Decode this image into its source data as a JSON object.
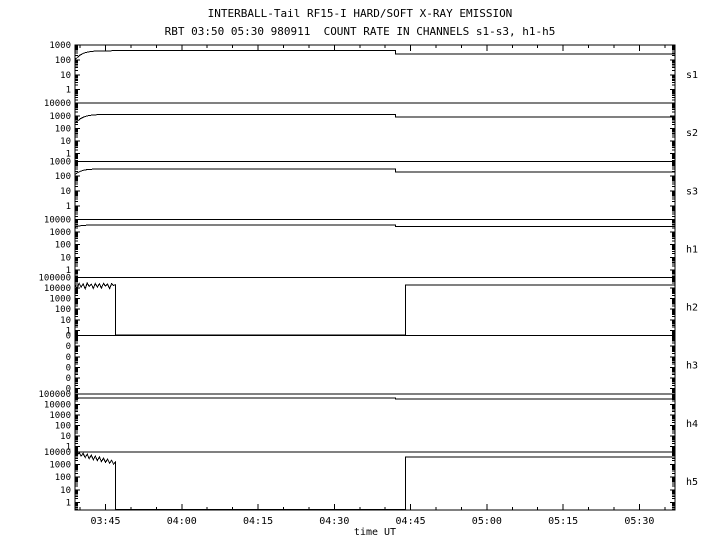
{
  "title": "INTERBALL-Tail RF15-I HARD/SOFT X-RAY EMISSION",
  "subtitle": "RBT 03:50 05:30 980911  COUNT RATE IN CHANNELS s1-s3, h1-h5",
  "xlabel": "time UT",
  "colors": {
    "foreground": "#000000",
    "background": "#ffffff"
  },
  "chart_data": {
    "type": "line",
    "title": "INTERBALL-Tail RF15-I HARD/SOFT X-RAY EMISSION",
    "subtitle": "RBT 03:50 05:30 980911  COUNT RATE IN CHANNELS s1-s3, h1-h5",
    "xlabel": "time UT",
    "x_unit": "minutes after 00:00 UT",
    "xlim": [
      219,
      337
    ],
    "x_minor_step": 5,
    "grid": false,
    "legend": "right-edge panel labels",
    "x_ticks": [
      {
        "t": 225,
        "label": "03:45"
      },
      {
        "t": 240,
        "label": "04:00"
      },
      {
        "t": 255,
        "label": "04:15"
      },
      {
        "t": 270,
        "label": "04:30"
      },
      {
        "t": 285,
        "label": "04:45"
      },
      {
        "t": 300,
        "label": "05:00"
      },
      {
        "t": 315,
        "label": "05:15"
      },
      {
        "t": 330,
        "label": "05:30"
      }
    ],
    "y_scale": "log",
    "panels": [
      {
        "id": "s1",
        "label": "s1",
        "top_exp": 3,
        "bottom_exp": -0.9,
        "y_ticks": [
          {
            "exp": 3,
            "label": "1000"
          },
          {
            "exp": 2,
            "label": "100"
          },
          {
            "exp": 1,
            "label": "10"
          },
          {
            "exp": 0,
            "label": "1"
          }
        ],
        "series": [
          [
            219,
            105
          ],
          [
            219.5,
            150
          ],
          [
            220,
            210
          ],
          [
            220.7,
            280
          ],
          [
            221.5,
            340
          ],
          [
            222.5,
            380
          ],
          [
            224,
            400
          ],
          [
            227,
            412
          ],
          [
            282,
            412
          ],
          [
            282,
            255
          ],
          [
            337,
            255
          ]
        ]
      },
      {
        "id": "s2",
        "label": "s2",
        "top_exp": 4,
        "bottom_exp": -0.6,
        "y_ticks": [
          {
            "exp": 4,
            "label": "10000"
          },
          {
            "exp": 3,
            "label": "1000"
          },
          {
            "exp": 2,
            "label": "100"
          },
          {
            "exp": 1,
            "label": "10"
          },
          {
            "exp": 0,
            "label": "1"
          }
        ],
        "series": [
          [
            219,
            260
          ],
          [
            219.5,
            380
          ],
          [
            220,
            560
          ],
          [
            220.7,
            800
          ],
          [
            221.5,
            1000
          ],
          [
            222.5,
            1150
          ],
          [
            224,
            1250
          ],
          [
            227,
            1300
          ],
          [
            282,
            1300
          ],
          [
            282,
            780
          ],
          [
            337,
            780
          ]
        ]
      },
      {
        "id": "s3",
        "label": "s3",
        "top_exp": 3,
        "bottom_exp": -0.9,
        "y_ticks": [
          {
            "exp": 3,
            "label": "1000"
          },
          {
            "exp": 2,
            "label": "100"
          },
          {
            "exp": 1,
            "label": "10"
          },
          {
            "exp": 0,
            "label": "1"
          }
        ],
        "series": [
          [
            219,
            130
          ],
          [
            219.5,
            170
          ],
          [
            220,
            210
          ],
          [
            220.7,
            250
          ],
          [
            221.5,
            280
          ],
          [
            222.5,
            295
          ],
          [
            224,
            305
          ],
          [
            227,
            310
          ],
          [
            282,
            310
          ],
          [
            282,
            185
          ],
          [
            337,
            185
          ]
        ]
      },
      {
        "id": "h1",
        "label": "h1",
        "top_exp": 4,
        "bottom_exp": -0.6,
        "y_ticks": [
          {
            "exp": 4,
            "label": "10000"
          },
          {
            "exp": 3,
            "label": "1000"
          },
          {
            "exp": 2,
            "label": "100"
          },
          {
            "exp": 1,
            "label": "10"
          },
          {
            "exp": 0,
            "label": "1"
          }
        ],
        "series": [
          [
            219,
            2500
          ],
          [
            220,
            3100
          ],
          [
            221.5,
            3500
          ],
          [
            224,
            3700
          ],
          [
            282,
            3700
          ],
          [
            282,
            2700
          ],
          [
            337,
            2700
          ]
        ]
      },
      {
        "id": "h2",
        "label": "h2",
        "top_exp": 5,
        "bottom_exp": -0.5,
        "y_ticks": [
          {
            "exp": 5,
            "label": "100000"
          },
          {
            "exp": 4,
            "label": "10000"
          },
          {
            "exp": 3,
            "label": "1000"
          },
          {
            "exp": 2,
            "label": "100"
          },
          {
            "exp": 1,
            "label": "10"
          },
          {
            "exp": 0,
            "label": "1"
          }
        ],
        "series": [
          [
            219,
            22000
          ],
          [
            219.4,
            9000
          ],
          [
            219.8,
            28000
          ],
          [
            220.2,
            12000
          ],
          [
            220.6,
            25000
          ],
          [
            221,
            8500
          ],
          [
            221.4,
            30000
          ],
          [
            221.8,
            14000
          ],
          [
            222.2,
            24000
          ],
          [
            222.6,
            9500
          ],
          [
            223,
            27000
          ],
          [
            223.4,
            12000
          ],
          [
            223.8,
            26000
          ],
          [
            224.2,
            10000
          ],
          [
            224.6,
            28000
          ],
          [
            225,
            15000
          ],
          [
            225.4,
            23000
          ],
          [
            225.8,
            9000
          ],
          [
            226.2,
            26000
          ],
          [
            226.6,
            18000
          ],
          [
            227,
            21000
          ],
          [
            227,
            0.35
          ],
          [
            284,
            0.35
          ],
          [
            284,
            20000
          ],
          [
            337,
            20000
          ]
        ]
      },
      {
        "id": "h3",
        "label": "h3",
        "top_exp": 5,
        "bottom_exp": -0.5,
        "y_ticks": [
          {
            "exp": 5,
            "label": "0"
          },
          {
            "exp": 4,
            "label": "0"
          },
          {
            "exp": 3,
            "label": "0"
          },
          {
            "exp": 2,
            "label": "0"
          },
          {
            "exp": 1,
            "label": "0"
          },
          {
            "exp": 0,
            "label": "0"
          }
        ],
        "series": []
      },
      {
        "id": "h4",
        "label": "h4",
        "top_exp": 5,
        "bottom_exp": -0.5,
        "y_ticks": [
          {
            "exp": 5,
            "label": "100000"
          },
          {
            "exp": 4,
            "label": "10000"
          },
          {
            "exp": 3,
            "label": "1000"
          },
          {
            "exp": 2,
            "label": "100"
          },
          {
            "exp": 1,
            "label": "10"
          },
          {
            "exp": 0,
            "label": "1"
          }
        ],
        "series": [
          [
            219,
            34000
          ],
          [
            220,
            40000
          ],
          [
            282,
            40000
          ],
          [
            282,
            32000
          ],
          [
            337,
            32000
          ]
        ]
      },
      {
        "id": "h5",
        "label": "h5",
        "top_exp": 4,
        "bottom_exp": -0.6,
        "y_ticks": [
          {
            "exp": 4,
            "label": "10000"
          },
          {
            "exp": 3,
            "label": "1000"
          },
          {
            "exp": 2,
            "label": "100"
          },
          {
            "exp": 1,
            "label": "10"
          },
          {
            "exp": 0,
            "label": "1"
          }
        ],
        "series": [
          [
            219,
            8000
          ],
          [
            219.4,
            5200
          ],
          [
            219.8,
            9000
          ],
          [
            220.2,
            4600
          ],
          [
            220.6,
            7600
          ],
          [
            221,
            3600
          ],
          [
            221.4,
            6600
          ],
          [
            221.8,
            2900
          ],
          [
            222.2,
            5600
          ],
          [
            222.6,
            2400
          ],
          [
            223,
            4600
          ],
          [
            223.4,
            2000
          ],
          [
            223.8,
            3900
          ],
          [
            224.2,
            1700
          ],
          [
            224.6,
            3300
          ],
          [
            225,
            1450
          ],
          [
            225.4,
            2700
          ],
          [
            225.8,
            1250
          ],
          [
            226.2,
            2200
          ],
          [
            226.6,
            1050
          ],
          [
            227,
            1600
          ],
          [
            227,
            0.27
          ],
          [
            284,
            0.27
          ],
          [
            284,
            4000
          ],
          [
            337,
            4000
          ]
        ]
      }
    ]
  }
}
